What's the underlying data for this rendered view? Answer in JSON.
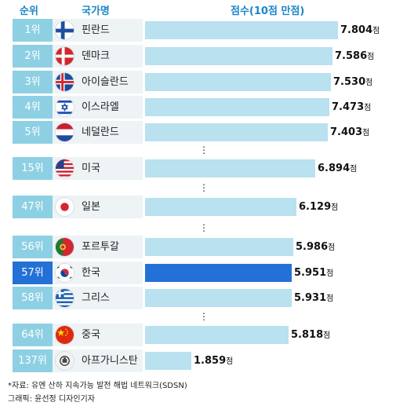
{
  "header": {
    "rank": "순위",
    "country": "국가명",
    "score": "점수(10점 만점)"
  },
  "unit": "점",
  "ellipsis": "⋮",
  "footer": {
    "source": "*자료: 유엔 산하 지속가능 발전 해법 네트워크(SDSN)",
    "credit": "그래픽: 윤선정 디자인기자"
  },
  "colors": {
    "rank_bg": "#8ed0e3",
    "bar": "#b9e1ef",
    "highlight": "#2371d6",
    "header": "#1a86c8"
  },
  "chart_data": {
    "type": "bar",
    "orientation": "horizontal",
    "xlim": [
      0,
      8
    ],
    "categories": [
      "핀란드",
      "덴마크",
      "아이슬란드",
      "이스라엘",
      "네덜란드",
      "미국",
      "일본",
      "포르투갈",
      "한국",
      "그리스",
      "중국",
      "아프가니스탄"
    ],
    "ranks": [
      "1위",
      "2위",
      "3위",
      "4위",
      "5위",
      "15위",
      "47위",
      "56위",
      "57위",
      "58위",
      "64위",
      "137위"
    ],
    "values": [
      7.804,
      7.586,
      7.53,
      7.473,
      7.403,
      6.894,
      6.129,
      5.986,
      5.951,
      5.931,
      5.818,
      1.859
    ],
    "value_labels": [
      "7.804",
      "7.586",
      "7.530",
      "7.473",
      "7.403",
      "6.894",
      "6.129",
      "5.986",
      "5.951",
      "5.931",
      "5.818",
      "1.859"
    ],
    "flags": [
      "finland-flag",
      "denmark-flag",
      "iceland-flag",
      "israel-flag",
      "netherlands-flag",
      "usa-flag",
      "japan-flag",
      "portugal-flag",
      "korea-flag",
      "greece-flag",
      "china-flag",
      "afghanistan-flag"
    ],
    "highlight": "한국"
  }
}
